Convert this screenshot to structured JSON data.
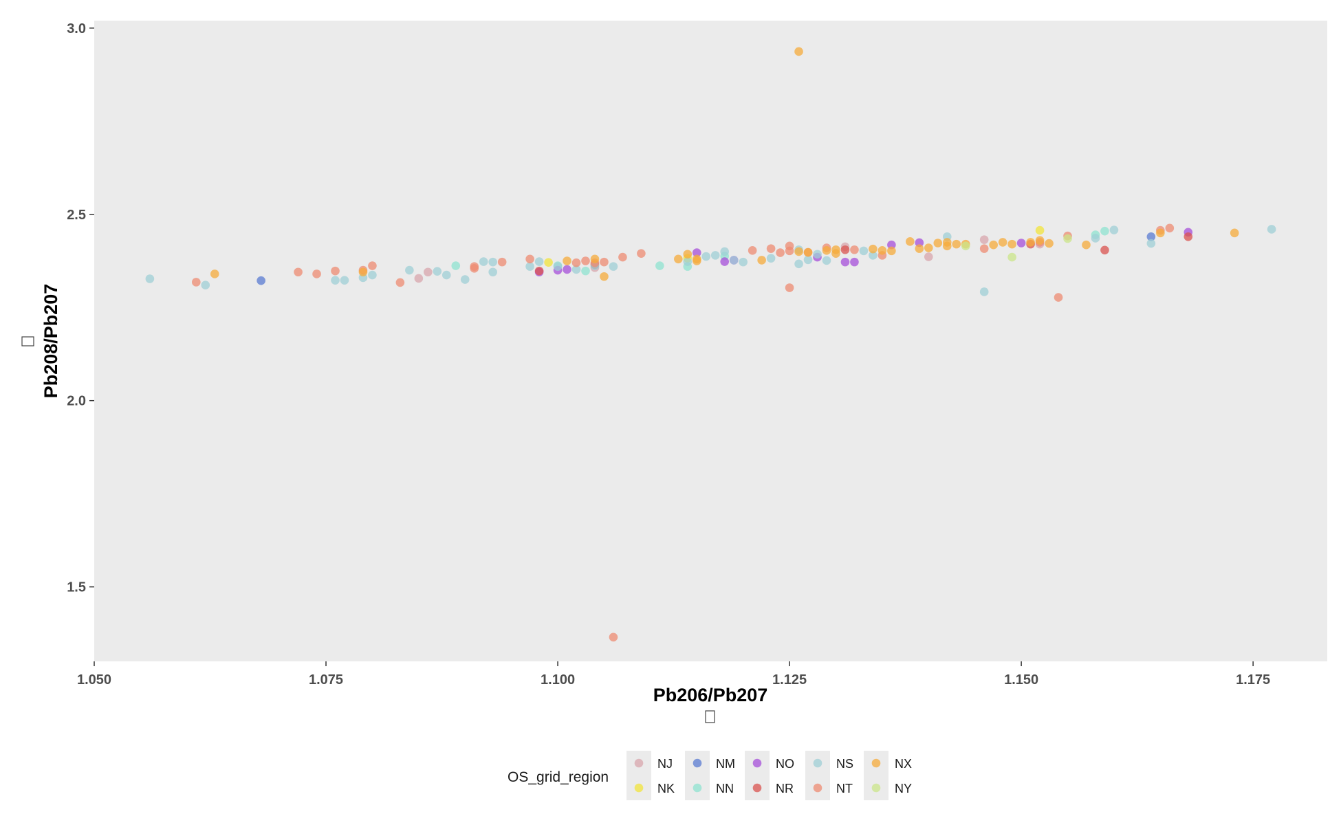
{
  "chart_data": {
    "type": "scatter",
    "xlabel": "Pb206/Pb207",
    "ylabel": "Pb208/Pb207",
    "xlim": [
      1.05,
      1.183
    ],
    "ylim": [
      1.3,
      3.02
    ],
    "x_ticks": [
      1.05,
      1.075,
      1.1,
      1.125,
      1.15,
      1.175
    ],
    "x_tick_labels": [
      "1.050",
      "1.075",
      "1.100",
      "1.125",
      "1.150",
      "1.175"
    ],
    "y_ticks": [
      1.5,
      2.0,
      2.5,
      3.0
    ],
    "y_tick_labels": [
      "1.5",
      "2.0",
      "2.5",
      "3.0"
    ],
    "grid": false,
    "panel_background": "#ebebeb",
    "legend": {
      "title": "OS_grid_region",
      "position": "bottom"
    },
    "series": [
      {
        "name": "NJ",
        "color": "#d8a6ac",
        "points": [
          [
            1.085,
            2.328
          ],
          [
            1.086,
            2.345
          ],
          [
            1.104,
            2.357
          ],
          [
            1.131,
            2.413
          ],
          [
            1.14,
            2.386
          ],
          [
            1.146,
            2.432
          ],
          [
            1.152,
            2.42
          ]
        ]
      },
      {
        "name": "NK",
        "color": "#f2e43b",
        "points": [
          [
            1.099,
            2.371
          ],
          [
            1.114,
            2.382
          ],
          [
            1.152,
            2.457
          ]
        ]
      },
      {
        "name": "NM",
        "color": "#5a7bd1",
        "points": [
          [
            1.068,
            2.322
          ],
          [
            1.164,
            2.44
          ]
        ]
      },
      {
        "name": "NN",
        "color": "#8fe3d0",
        "points": [
          [
            1.089,
            2.362
          ],
          [
            1.1,
            2.362
          ],
          [
            1.103,
            2.348
          ],
          [
            1.111,
            2.362
          ],
          [
            1.114,
            2.36
          ],
          [
            1.118,
            2.388
          ],
          [
            1.158,
            2.445
          ],
          [
            1.159,
            2.455
          ]
        ]
      },
      {
        "name": "NO",
        "color": "#a54fd9",
        "points": [
          [
            1.098,
            2.345
          ],
          [
            1.1,
            2.35
          ],
          [
            1.101,
            2.352
          ],
          [
            1.115,
            2.397
          ],
          [
            1.118,
            2.373
          ],
          [
            1.119,
            2.377
          ],
          [
            1.128,
            2.385
          ],
          [
            1.131,
            2.372
          ],
          [
            1.132,
            2.372
          ],
          [
            1.136,
            2.418
          ],
          [
            1.139,
            2.424
          ],
          [
            1.15,
            2.423
          ],
          [
            1.168,
            2.452
          ]
        ]
      },
      {
        "name": "NR",
        "color": "#d9534f",
        "points": [
          [
            1.098,
            2.348
          ],
          [
            1.104,
            2.365
          ],
          [
            1.131,
            2.405
          ],
          [
            1.151,
            2.42
          ],
          [
            1.159,
            2.404
          ],
          [
            1.168,
            2.44
          ]
        ]
      },
      {
        "name": "NS",
        "color": "#9fcfd6",
        "points": [
          [
            1.056,
            2.327
          ],
          [
            1.062,
            2.31
          ],
          [
            1.076,
            2.323
          ],
          [
            1.077,
            2.323
          ],
          [
            1.079,
            2.33
          ],
          [
            1.08,
            2.337
          ],
          [
            1.084,
            2.35
          ],
          [
            1.087,
            2.347
          ],
          [
            1.088,
            2.337
          ],
          [
            1.09,
            2.325
          ],
          [
            1.092,
            2.373
          ],
          [
            1.093,
            2.345
          ],
          [
            1.093,
            2.372
          ],
          [
            1.097,
            2.36
          ],
          [
            1.098,
            2.373
          ],
          [
            1.1,
            2.36
          ],
          [
            1.102,
            2.352
          ],
          [
            1.104,
            2.362
          ],
          [
            1.106,
            2.36
          ],
          [
            1.114,
            2.373
          ],
          [
            1.116,
            2.387
          ],
          [
            1.117,
            2.39
          ],
          [
            1.118,
            2.4
          ],
          [
            1.119,
            2.377
          ],
          [
            1.12,
            2.372
          ],
          [
            1.123,
            2.382
          ],
          [
            1.126,
            2.367
          ],
          [
            1.126,
            2.405
          ],
          [
            1.127,
            2.378
          ],
          [
            1.128,
            2.393
          ],
          [
            1.129,
            2.376
          ],
          [
            1.133,
            2.402
          ],
          [
            1.134,
            2.39
          ],
          [
            1.142,
            2.44
          ],
          [
            1.146,
            2.292
          ],
          [
            1.158,
            2.436
          ],
          [
            1.16,
            2.458
          ],
          [
            1.164,
            2.422
          ],
          [
            1.177,
            2.46
          ]
        ]
      },
      {
        "name": "NT",
        "color": "#ee8b72",
        "points": [
          [
            1.061,
            2.318
          ],
          [
            1.072,
            2.345
          ],
          [
            1.074,
            2.34
          ],
          [
            1.076,
            2.348
          ],
          [
            1.079,
            2.35
          ],
          [
            1.08,
            2.362
          ],
          [
            1.083,
            2.317
          ],
          [
            1.091,
            2.355
          ],
          [
            1.091,
            2.36
          ],
          [
            1.094,
            2.372
          ],
          [
            1.097,
            2.38
          ],
          [
            1.102,
            2.37
          ],
          [
            1.103,
            2.375
          ],
          [
            1.104,
            2.37
          ],
          [
            1.105,
            2.372
          ],
          [
            1.106,
            1.365
          ],
          [
            1.107,
            2.385
          ],
          [
            1.109,
            2.395
          ],
          [
            1.121,
            2.403
          ],
          [
            1.123,
            2.408
          ],
          [
            1.124,
            2.397
          ],
          [
            1.125,
            2.415
          ],
          [
            1.125,
            2.402
          ],
          [
            1.125,
            2.303
          ],
          [
            1.127,
            2.398
          ],
          [
            1.129,
            2.41
          ],
          [
            1.132,
            2.405
          ],
          [
            1.135,
            2.39
          ],
          [
            1.146,
            2.408
          ],
          [
            1.152,
            2.425
          ],
          [
            1.154,
            2.277
          ],
          [
            1.155,
            2.442
          ],
          [
            1.165,
            2.457
          ],
          [
            1.166,
            2.463
          ]
        ]
      },
      {
        "name": "NX",
        "color": "#f6ab3b",
        "points": [
          [
            1.063,
            2.34
          ],
          [
            1.079,
            2.345
          ],
          [
            1.101,
            2.375
          ],
          [
            1.104,
            2.38
          ],
          [
            1.105,
            2.333
          ],
          [
            1.113,
            2.38
          ],
          [
            1.114,
            2.393
          ],
          [
            1.115,
            2.38
          ],
          [
            1.115,
            2.375
          ],
          [
            1.122,
            2.377
          ],
          [
            1.126,
            2.937
          ],
          [
            1.126,
            2.4
          ],
          [
            1.127,
            2.398
          ],
          [
            1.129,
            2.403
          ],
          [
            1.13,
            2.395
          ],
          [
            1.13,
            2.405
          ],
          [
            1.134,
            2.407
          ],
          [
            1.135,
            2.403
          ],
          [
            1.136,
            2.402
          ],
          [
            1.138,
            2.427
          ],
          [
            1.139,
            2.408
          ],
          [
            1.14,
            2.41
          ],
          [
            1.141,
            2.423
          ],
          [
            1.142,
            2.415
          ],
          [
            1.142,
            2.425
          ],
          [
            1.143,
            2.42
          ],
          [
            1.144,
            2.42
          ],
          [
            1.147,
            2.418
          ],
          [
            1.148,
            2.425
          ],
          [
            1.149,
            2.42
          ],
          [
            1.151,
            2.425
          ],
          [
            1.152,
            2.43
          ],
          [
            1.153,
            2.422
          ],
          [
            1.157,
            2.418
          ],
          [
            1.165,
            2.45
          ],
          [
            1.173,
            2.45
          ]
        ]
      },
      {
        "name": "NY",
        "color": "#cbe58a",
        "points": [
          [
            1.144,
            2.415
          ],
          [
            1.149,
            2.385
          ],
          [
            1.155,
            2.435
          ]
        ]
      }
    ]
  }
}
